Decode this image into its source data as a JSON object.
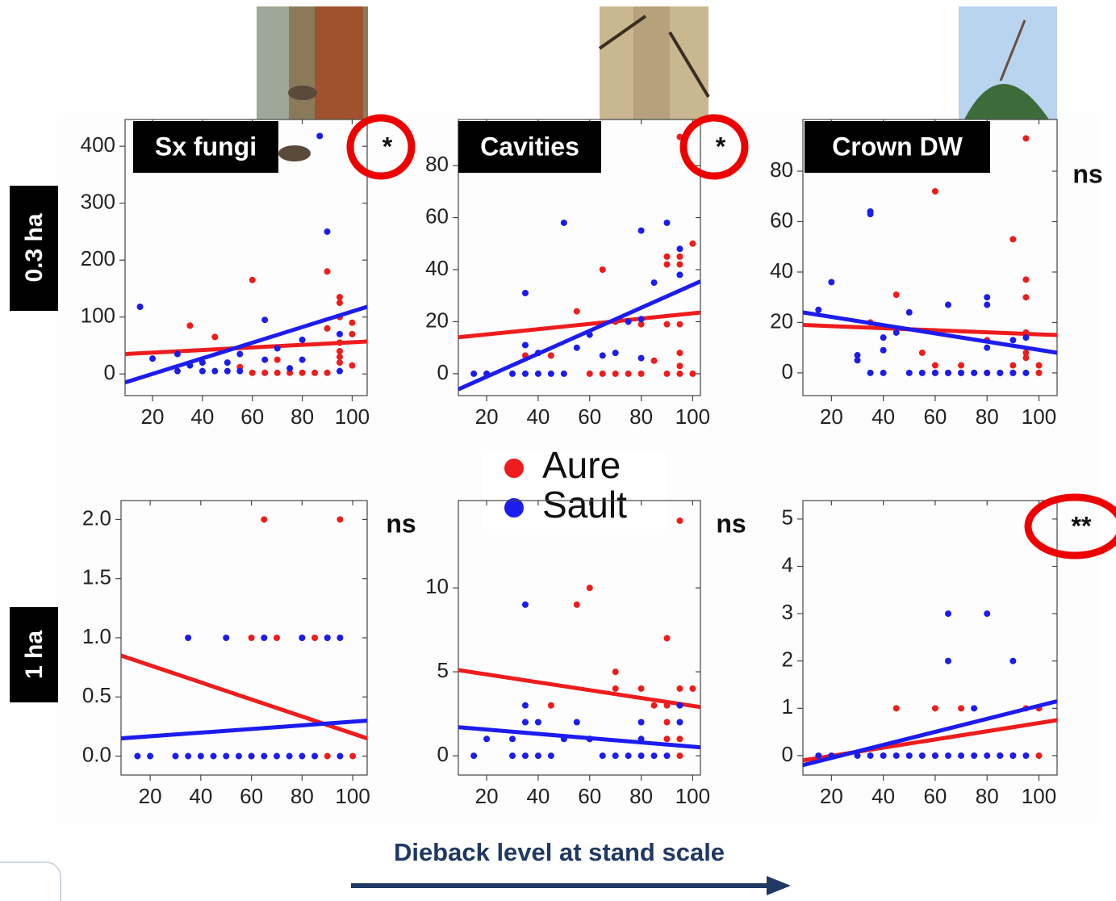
{
  "chart_data": [
    {
      "type": "scatter",
      "title": "Sx fungi",
      "annotation": "*",
      "highlight": true,
      "xlim": [
        9,
        106
      ],
      "xticks": [
        20,
        40,
        60,
        80,
        100
      ],
      "ylim": [
        -38,
        447
      ],
      "yticks": [
        0,
        100,
        200,
        300,
        400
      ],
      "series": [
        {
          "color": "#ee1c1c",
          "x": [
            35,
            45,
            55,
            60,
            60,
            65,
            70,
            70,
            75,
            80,
            85,
            90,
            90,
            90,
            95,
            95,
            95,
            95,
            95,
            95,
            95,
            100,
            100,
            100
          ],
          "values": [
            85,
            65,
            12,
            165,
            2,
            2,
            2,
            25,
            2,
            2,
            2,
            2,
            180,
            80,
            135,
            125,
            100,
            55,
            40,
            30,
            20,
            90,
            70,
            15
          ],
          "fit_x": [
            9,
            106
          ],
          "fit_y": [
            35,
            57
          ]
        },
        {
          "color": "#1c1cee",
          "x": [
            15,
            20,
            30,
            30,
            35,
            40,
            40,
            45,
            50,
            50,
            55,
            55,
            65,
            65,
            70,
            75,
            80,
            80,
            87,
            90,
            95,
            95
          ],
          "values": [
            118,
            27,
            5,
            35,
            15,
            20,
            5,
            5,
            5,
            20,
            35,
            5,
            95,
            25,
            45,
            10,
            60,
            25,
            418,
            250,
            70,
            5
          ],
          "fit_x": [
            9,
            106
          ],
          "fit_y": [
            -15,
            118
          ]
        }
      ]
    },
    {
      "type": "scatter",
      "title": "Cavities",
      "annotation": "*",
      "highlight": true,
      "xlim": [
        9,
        103
      ],
      "xticks": [
        20,
        40,
        60,
        80,
        100
      ],
      "ylim": [
        -8.4,
        97.7
      ],
      "yticks": [
        0,
        20,
        40,
        60,
        80
      ],
      "series": [
        {
          "color": "#ee1c1c",
          "x": [
            35,
            45,
            55,
            60,
            65,
            65,
            70,
            70,
            75,
            80,
            80,
            85,
            90,
            90,
            90,
            90,
            95,
            95,
            95,
            95,
            95,
            95,
            95,
            100,
            100
          ],
          "values": [
            7,
            7,
            24,
            0,
            40,
            0,
            0,
            20,
            0,
            0,
            19,
            5,
            45,
            42,
            19,
            0,
            91,
            45,
            42,
            19,
            8,
            3,
            0,
            50,
            0
          ],
          "fit_x": [
            9,
            103
          ],
          "fit_y": [
            14,
            23.5
          ]
        },
        {
          "color": "#1c1cee",
          "x": [
            15,
            20,
            30,
            35,
            35,
            35,
            40,
            40,
            45,
            50,
            50,
            55,
            60,
            65,
            70,
            75,
            80,
            80,
            80,
            85,
            90,
            95,
            95
          ],
          "values": [
            0,
            0,
            0,
            31,
            11,
            0,
            0,
            8,
            0,
            58,
            0,
            10,
            15,
            7,
            8,
            20,
            55,
            21,
            6,
            35,
            58,
            48,
            38
          ],
          "fit_x": [
            9,
            103
          ],
          "fit_y": [
            -6,
            35.5
          ]
        }
      ]
    },
    {
      "type": "scatter",
      "title": "Crown DW",
      "annotation": "ns",
      "highlight": false,
      "xlim": [
        9,
        107
      ],
      "xticks": [
        20,
        40,
        60,
        80,
        100
      ],
      "ylim": [
        -9,
        100.5
      ],
      "yticks": [
        0,
        20,
        40,
        60,
        80
      ],
      "series": [
        {
          "color": "#ee1c1c",
          "x": [
            35,
            45,
            55,
            60,
            60,
            60,
            65,
            70,
            70,
            75,
            80,
            80,
            85,
            90,
            90,
            90,
            95,
            95,
            95,
            95,
            95,
            95,
            95,
            100,
            100
          ],
          "values": [
            20,
            31,
            8,
            72,
            3,
            0,
            0,
            0,
            3,
            0,
            0,
            13,
            0,
            53,
            0,
            3,
            93,
            37,
            30,
            16,
            15,
            8,
            6,
            3,
            0
          ],
          "fit_x": [
            9,
            107
          ],
          "fit_y": [
            19,
            15
          ]
        },
        {
          "color": "#1c1cee",
          "x": [
            15,
            20,
            30,
            30,
            35,
            35,
            35,
            40,
            40,
            40,
            45,
            50,
            50,
            55,
            60,
            65,
            65,
            70,
            75,
            80,
            80,
            80,
            80,
            85,
            90,
            90,
            95,
            95
          ],
          "values": [
            25,
            36,
            7,
            5,
            64,
            63,
            0,
            0,
            14,
            9,
            16,
            24,
            0,
            0,
            0,
            27,
            0,
            0,
            0,
            0,
            30,
            27,
            10,
            0,
            0,
            13,
            0,
            14
          ],
          "fit_x": [
            9,
            107
          ],
          "fit_y": [
            24,
            8
          ]
        }
      ]
    },
    {
      "type": "scatter",
      "annotation": "ns",
      "highlight": false,
      "xlim": [
        8.5,
        105.7
      ],
      "xticks": [
        20,
        40,
        60,
        80,
        100
      ],
      "ylim": [
        -0.16,
        2.16
      ],
      "yticks": [
        {
          "value": 0,
          "label": "0.0"
        },
        0.5,
        {
          "value": 1,
          "label": "1.0"
        },
        1.5,
        {
          "value": 2,
          "label": "2.0"
        }
      ],
      "series": [
        {
          "color": "#ee1c1c",
          "x": [
            60,
            60,
            65,
            70,
            80,
            85,
            90,
            90,
            95,
            100
          ],
          "values": [
            1,
            0,
            2,
            1,
            1,
            1,
            1,
            0,
            2,
            0
          ],
          "fit_x": [
            8.5,
            105.7
          ],
          "fit_y": [
            0.85,
            0.15
          ]
        },
        {
          "color": "#1c1cee",
          "x": [
            15,
            20,
            30,
            35,
            35,
            40,
            45,
            50,
            50,
            55,
            60,
            65,
            65,
            70,
            75,
            80,
            80,
            85,
            90,
            95,
            95
          ],
          "values": [
            0,
            0,
            0,
            1,
            0,
            0,
            0,
            1,
            0,
            0,
            0,
            1,
            0,
            0,
            0,
            1,
            0,
            0,
            1,
            0,
            1
          ],
          "fit_x": [
            8.5,
            105.7
          ],
          "fit_y": [
            0.15,
            0.3
          ]
        }
      ]
    },
    {
      "type": "scatter",
      "annotation": "ns",
      "highlight": false,
      "xlim": [
        9,
        103
      ],
      "xticks": [
        20,
        40,
        60,
        80,
        100
      ],
      "ylim": [
        -1.15,
        15.2
      ],
      "yticks": [
        0,
        5,
        10
      ],
      "series": [
        {
          "color": "#ee1c1c",
          "x": [
            45,
            55,
            60,
            60,
            70,
            70,
            80,
            85,
            90,
            90,
            90,
            90,
            95,
            95,
            95,
            95,
            100
          ],
          "values": [
            3,
            9,
            10,
            1,
            5,
            4,
            4,
            3,
            7,
            3,
            2,
            1,
            14,
            4,
            1,
            0,
            4
          ],
          "fit_x": [
            9,
            103
          ],
          "fit_y": [
            5.1,
            2.9
          ]
        },
        {
          "color": "#1c1cee",
          "x": [
            15,
            20,
            30,
            30,
            35,
            35,
            35,
            35,
            40,
            40,
            45,
            50,
            55,
            60,
            65,
            70,
            75,
            80,
            80,
            80,
            85,
            90,
            95,
            95
          ],
          "values": [
            0,
            1,
            1,
            0,
            9,
            3,
            2,
            0,
            2,
            0,
            0,
            1,
            2,
            1,
            0,
            0,
            0,
            2,
            1,
            0,
            0,
            0,
            2,
            3
          ],
          "fit_x": [
            9,
            103
          ],
          "fit_y": [
            1.7,
            0.5
          ]
        }
      ]
    },
    {
      "type": "scatter",
      "annotation": "**",
      "highlight": true,
      "xlim": [
        9,
        107
      ],
      "xticks": [
        20,
        40,
        60,
        80,
        100
      ],
      "ylim": [
        -0.41,
        5.39
      ],
      "yticks": [
        0,
        1,
        2,
        3,
        4,
        5
      ],
      "series": [
        {
          "color": "#ee1c1c",
          "x": [
            45,
            60,
            60,
            70,
            85,
            90,
            95,
            100,
            100
          ],
          "values": [
            1,
            1,
            0,
            1,
            0,
            0,
            1,
            0,
            1
          ],
          "fit_x": [
            9,
            107
          ],
          "fit_y": [
            -0.1,
            0.75
          ]
        },
        {
          "color": "#1c1cee",
          "x": [
            15,
            20,
            30,
            35,
            40,
            45,
            50,
            55,
            60,
            65,
            65,
            65,
            70,
            75,
            75,
            80,
            80,
            85,
            90,
            90,
            95
          ],
          "values": [
            0,
            0,
            0,
            0,
            0,
            0,
            0,
            0,
            0,
            3,
            2,
            0,
            0,
            1,
            0,
            3,
            0,
            0,
            2,
            0,
            0
          ],
          "fit_x": [
            9,
            107
          ],
          "fit_y": [
            -0.2,
            1.15
          ]
        }
      ]
    }
  ],
  "legend": [
    {
      "name": "Aure",
      "color": "#ee1c1c"
    },
    {
      "name": "Sault",
      "color": "#1c1cee"
    }
  ],
  "row_labels": [
    "0.3 ha",
    "1 ha"
  ],
  "x_axis_label": "Dieback level at stand scale"
}
